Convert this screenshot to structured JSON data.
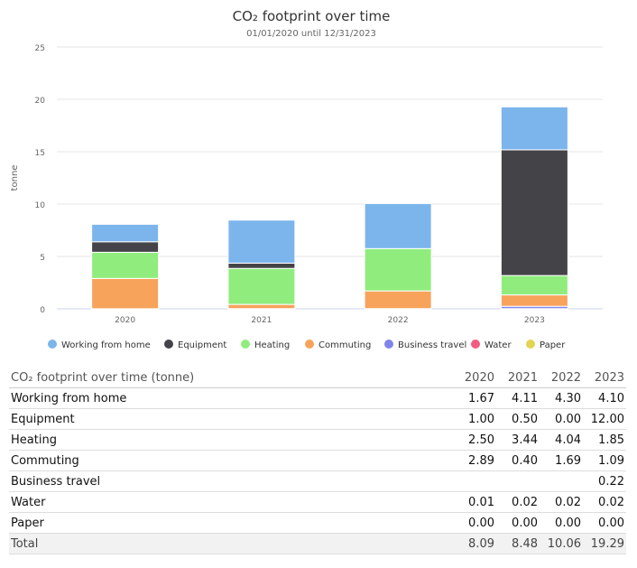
{
  "chart_data": {
    "type": "bar",
    "stacked": true,
    "title": "CO₂ footprint over time",
    "subtitle": "01/01/2020 until 12/31/2023",
    "ylabel": "tonne",
    "ylim": [
      0,
      25
    ],
    "yticks": [
      0,
      5,
      10,
      15,
      20,
      25
    ],
    "grid": true,
    "legend": "bottom",
    "categories": [
      "2020",
      "2021",
      "2022",
      "2023"
    ],
    "series": [
      {
        "name": "Working from home",
        "color": "#7cb5ec",
        "values": [
          1.67,
          4.11,
          4.3,
          4.1
        ]
      },
      {
        "name": "Equipment",
        "color": "#434348",
        "values": [
          1.0,
          0.5,
          0.0,
          12.0
        ]
      },
      {
        "name": "Heating",
        "color": "#90ed7d",
        "values": [
          2.5,
          3.44,
          4.04,
          1.85
        ]
      },
      {
        "name": "Commuting",
        "color": "#f7a35c",
        "values": [
          2.89,
          0.4,
          1.69,
          1.09
        ]
      },
      {
        "name": "Business travel",
        "color": "#8085e9",
        "values": [
          null,
          null,
          null,
          0.22
        ]
      },
      {
        "name": "Water",
        "color": "#f15c80",
        "values": [
          0.01,
          0.02,
          0.02,
          0.02
        ]
      },
      {
        "name": "Paper",
        "color": "#e4d354",
        "values": [
          0.0,
          0.0,
          0.0,
          0.0
        ]
      }
    ]
  },
  "table": {
    "header": "CO₂ footprint over time (tonne)",
    "years": [
      "2020",
      "2021",
      "2022",
      "2023"
    ],
    "rows": [
      {
        "label": "Working from home",
        "values": [
          "1.67",
          "4.11",
          "4.30",
          "4.10"
        ]
      },
      {
        "label": "Equipment",
        "values": [
          "1.00",
          "0.50",
          "0.00",
          "12.00"
        ]
      },
      {
        "label": "Heating",
        "values": [
          "2.50",
          "3.44",
          "4.04",
          "1.85"
        ]
      },
      {
        "label": "Commuting",
        "values": [
          "2.89",
          "0.40",
          "1.69",
          "1.09"
        ]
      },
      {
        "label": "Business travel",
        "values": [
          "",
          "",
          "",
          "0.22"
        ]
      },
      {
        "label": "Water",
        "values": [
          "0.01",
          "0.02",
          "0.02",
          "0.02"
        ]
      },
      {
        "label": "Paper",
        "values": [
          "0.00",
          "0.00",
          "0.00",
          "0.00"
        ]
      }
    ],
    "total": {
      "label": "Total",
      "values": [
        "8.09",
        "8.48",
        "10.06",
        "19.29"
      ]
    }
  }
}
